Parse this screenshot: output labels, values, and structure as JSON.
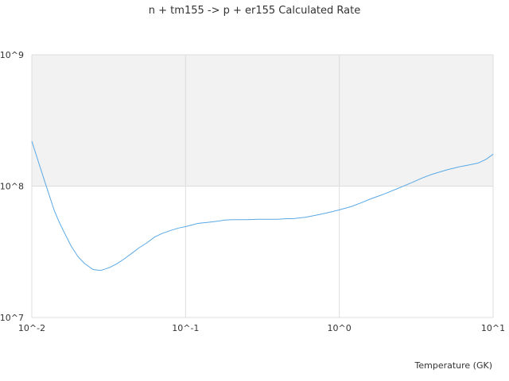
{
  "chart_data": {
    "type": "line",
    "title": "n + tm155 -> p + er155 Calculated Rate",
    "xlabel": "Temperature (GK)",
    "ylabel": "",
    "x_scale": "log",
    "y_scale": "log",
    "xlim": [
      0.01,
      10
    ],
    "ylim": [
      10000000,
      1000000000
    ],
    "x_ticks": [
      "10^-2",
      "10^-1",
      "10^0",
      "10^1"
    ],
    "y_ticks": [
      "10^7",
      "10^8",
      "10^9"
    ],
    "grid": true,
    "legend": "none",
    "series": [
      {
        "color": "#5aa9e6",
        "x": [
          0.01,
          0.011,
          0.012,
          0.013,
          0.014,
          0.015,
          0.016,
          0.018,
          0.02,
          0.022,
          0.025,
          0.028,
          0.032,
          0.036,
          0.04,
          0.045,
          0.05,
          0.056,
          0.063,
          0.07,
          0.08,
          0.09,
          0.1,
          0.12,
          0.14,
          0.16,
          0.18,
          0.2,
          0.25,
          0.3,
          0.35,
          0.4,
          0.45,
          0.5,
          0.6,
          0.7,
          0.8,
          0.9,
          1.0,
          1.2,
          1.4,
          1.6,
          1.8,
          2.0,
          2.5,
          3.0,
          3.5,
          4.0,
          5.0,
          6.0,
          7.0,
          8.0,
          9.0,
          10.0
        ],
        "y": [
          220000000,
          155000000,
          113000000,
          85000000,
          65000000,
          54000000,
          46000000,
          35000000,
          29000000,
          25800000,
          23200000,
          22800000,
          24000000,
          25800000,
          28000000,
          31000000,
          34000000,
          37000000,
          41000000,
          43500000,
          46000000,
          48000000,
          49200000,
          52000000,
          53000000,
          54000000,
          55200000,
          55500000,
          55500000,
          56000000,
          56000000,
          56000000,
          56500000,
          56500000,
          58000000,
          60000000,
          62000000,
          64000000,
          66000000,
          70000000,
          75000000,
          80000000,
          84000000,
          88000000,
          98000000,
          107000000,
          116000000,
          123000000,
          133000000,
          140000000,
          145000000,
          150000000,
          160000000,
          175000000
        ]
      }
    ]
  }
}
